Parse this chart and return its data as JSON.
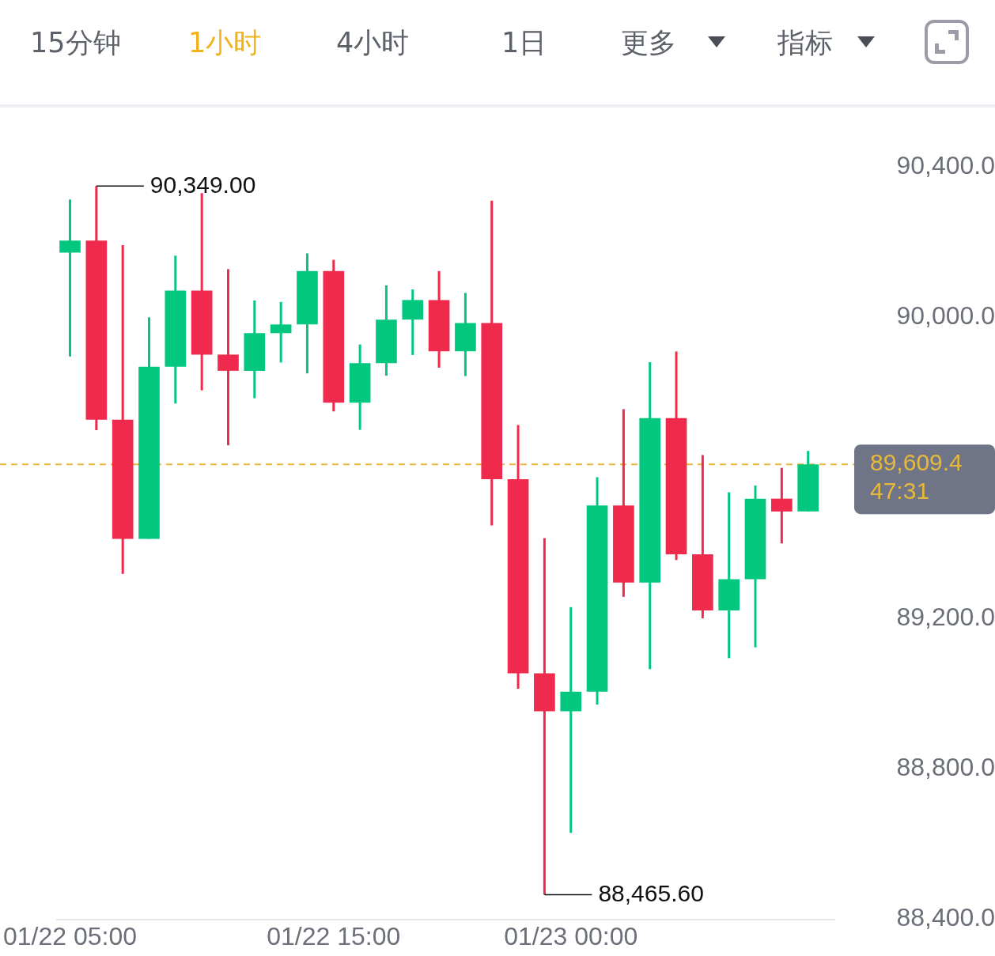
{
  "chart_data": [
    {
      "type": "other",
      "annotations": [
        "15分钟",
        "1小时",
        "4小时",
        "1日",
        "更多",
        "指标"
      ],
      "colors": [
        "#5d6169",
        "#f0b31b",
        "#5d6169",
        "#5d6169",
        "#5d6169",
        "#5d6169"
      ]
    },
    {
      "type": "candlestick",
      "x": [
        "--01-22T05:00",
        "--01-22T06:00",
        "--01-22T07:00",
        "--01-22T08:00",
        "--01-22T09:00",
        "--01-22T10:00",
        "--01-22T11:00",
        "--01-22T12:00",
        "--01-22T13:00",
        "--01-22T14:00",
        "--01-22T15:00",
        "--01-22T16:00",
        "--01-22T17:00",
        "--01-22T18:00",
        "--01-22T19:00",
        "--01-22T20:00",
        "--01-22T21:00",
        "--01-22T22:00",
        "--01-22T23:00",
        "--01-23T00:00",
        "--01-23T01:00",
        "--01-23T02:00",
        "--01-23T03:00",
        "--01-23T04:00",
        "--01-23T05:00",
        "--01-23T06:00",
        "--01-23T07:00",
        "--01-23T08:00",
        "--01-23T09:00"
      ],
      "xlim": [
        "--01-22T04:30",
        "--01-23T10:00"
      ],
      "xticks": [
        {
          "value": "--01-22T05:00",
          "label": "01/22 05:00"
        },
        {
          "value": "--01-22T15:00",
          "label": "01/22 15:00"
        },
        {
          "value": "--01-23T00:00",
          "label": "01/23 00:00"
        }
      ],
      "ohlc": [
        [
          90172,
          90313,
          89896,
          90204
        ],
        [
          90204,
          90349,
          89700,
          89728
        ],
        [
          89728,
          90192,
          89318,
          89411
        ],
        [
          89411,
          90000,
          89411,
          89869
        ],
        [
          89869,
          90164,
          89771,
          90071
        ],
        [
          90071,
          90330,
          89806,
          89901
        ],
        [
          89901,
          90128,
          89660,
          89858
        ],
        [
          89858,
          90045,
          89785,
          89958
        ],
        [
          89958,
          90041,
          89880,
          89981
        ],
        [
          89981,
          90170,
          89851,
          90123
        ],
        [
          90123,
          90153,
          89750,
          89773
        ],
        [
          89773,
          89928,
          89701,
          89878
        ],
        [
          89878,
          90085,
          89845,
          89994
        ],
        [
          89994,
          90074,
          89900,
          90046
        ],
        [
          90046,
          90123,
          89866,
          89910
        ],
        [
          89910,
          90065,
          89844,
          89985
        ],
        [
          89985,
          90310,
          89447,
          89570
        ],
        [
          89570,
          89714,
          89013,
          89054
        ],
        [
          89054,
          89413,
          88465.6,
          88953
        ],
        [
          88953,
          89230,
          88630,
          89005
        ],
        [
          89005,
          89575,
          88971,
          89500
        ],
        [
          89500,
          89756,
          89257,
          89295
        ],
        [
          89295,
          89881,
          89065,
          89732
        ],
        [
          89732,
          89909,
          89355,
          89370
        ],
        [
          89370,
          89634,
          89200,
          89221
        ],
        [
          89221,
          89535,
          89094,
          89304
        ],
        [
          89304,
          89553,
          89123,
          89518
        ],
        [
          89518,
          89600,
          89399,
          89484
        ],
        [
          89484,
          89645,
          89484,
          89609.4
        ]
      ],
      "colors": [
        "#03c77f",
        "#ef2a4c",
        "#ef2a4c",
        "#03c77f",
        "#03c77f",
        "#ef2a4c",
        "#ef2a4c",
        "#03c77f",
        "#03c77f",
        "#03c77f",
        "#ef2a4c",
        "#03c77f",
        "#03c77f",
        "#03c77f",
        "#ef2a4c",
        "#03c77f",
        "#ef2a4c",
        "#ef2a4c",
        "#ef2a4c",
        "#03c77f",
        "#03c77f",
        "#ef2a4c",
        "#03c77f",
        "#ef2a4c",
        "#ef2a4c",
        "#03c77f",
        "#03c77f",
        "#ef2a4c",
        "#03c77f"
      ],
      "ylim": [
        88400,
        90400
      ],
      "yticks": [
        {
          "value": 88400,
          "label": "88,400.0"
        },
        {
          "value": 88800,
          "label": "88,800.0"
        },
        {
          "value": 89200,
          "label": "89,200.0"
        },
        {
          "value": 90000,
          "label": "90,000.0"
        },
        {
          "value": 90400,
          "label": "90,400.0"
        }
      ],
      "ref_lines": [
        {
          "axis": "y",
          "value": 89609.4,
          "label": "89,609.4",
          "color": "#e6b93c",
          "line_style": "dashed"
        }
      ],
      "annotations": [
        {
          "text": "90,349.00",
          "x": "--01-22T06:00",
          "y": 90349
        },
        {
          "text": "88,465.60",
          "x": "--01-22T23:00",
          "y": 88465.6
        },
        "47:31"
      ]
    }
  ]
}
